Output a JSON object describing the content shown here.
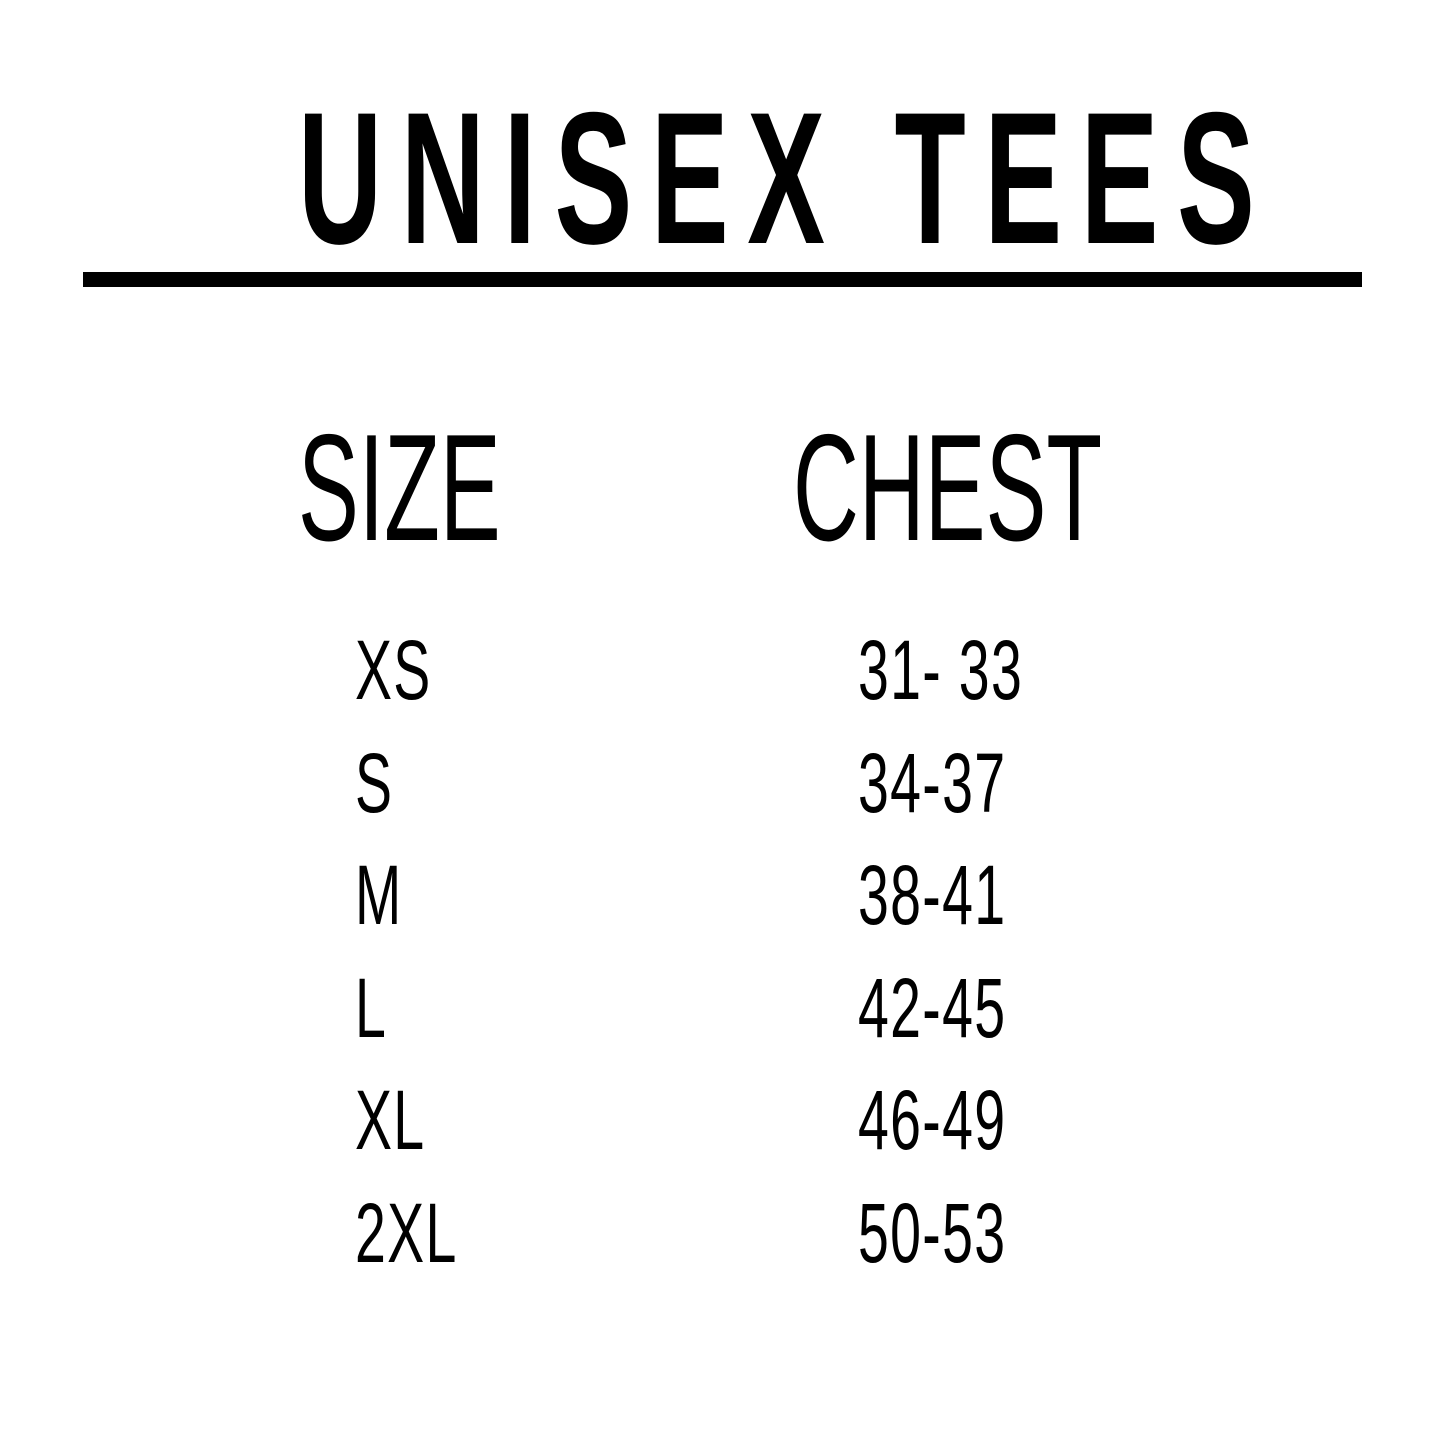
{
  "title": "UNISEX TEES",
  "headers": {
    "size": "SIZE",
    "chest": "CHEST"
  },
  "rows": [
    {
      "size": "XS",
      "chest": "31- 33"
    },
    {
      "size": "S",
      "chest": "34-37"
    },
    {
      "size": "M",
      "chest": "38-41"
    },
    {
      "size": "L",
      "chest": "42-45"
    },
    {
      "size": "XL",
      "chest": "46-49"
    },
    {
      "size": "2XL",
      "chest": "50-53"
    }
  ],
  "colors": {
    "text": "#000000",
    "background": "#ffffff"
  }
}
